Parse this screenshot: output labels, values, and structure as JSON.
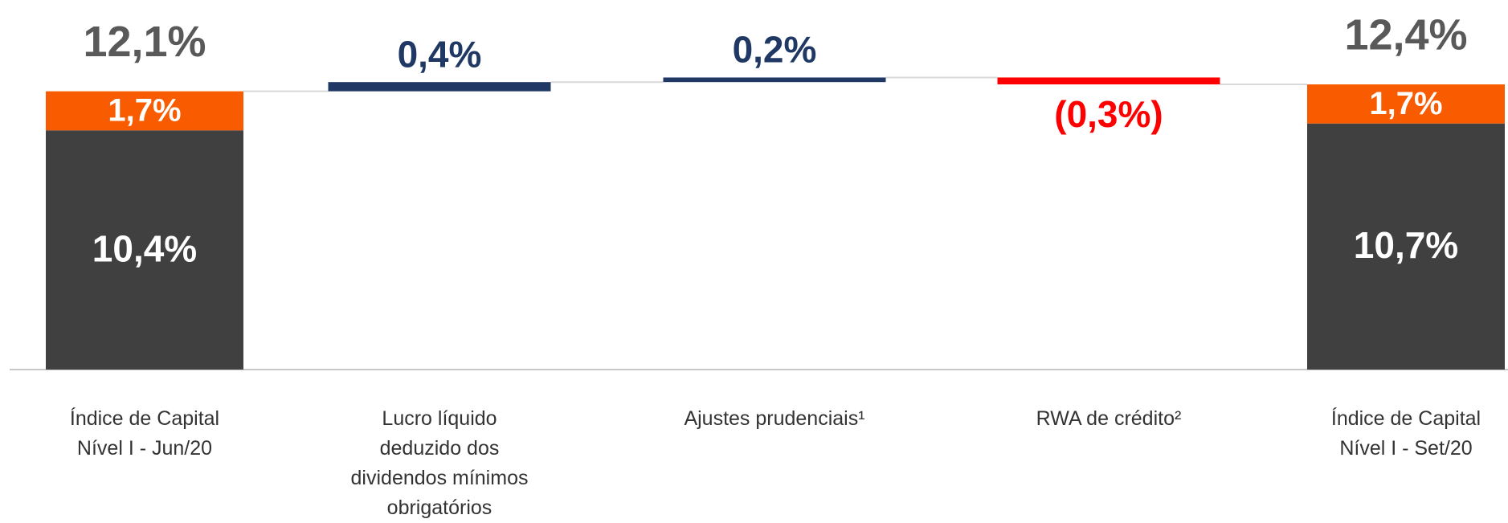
{
  "chart_data": {
    "type": "waterfall",
    "categories": [
      "Índice de Capital Nível I - Jun/20",
      "Lucro líquido deduzido dos dividendos mínimos obrigatórios",
      "Ajustes prudenciais¹",
      "RWA de crédito²",
      "Índice de Capital Nível I - Set/20"
    ],
    "series": [
      {
        "color": "#404040",
        "values": [
          10.4,
          null,
          null,
          null,
          10.7
        ],
        "value_labels": [
          "10,4%",
          null,
          null,
          null,
          "10,7%"
        ]
      },
      {
        "color": "#f95b00",
        "values": [
          1.7,
          null,
          null,
          null,
          1.7
        ],
        "value_labels": [
          "1,7%",
          null,
          null,
          null,
          "1,7%"
        ]
      },
      {
        "colors": [
          null,
          "#203864",
          "#203864",
          "#ff0000",
          null
        ],
        "values": [
          null,
          0.4,
          0.2,
          -0.3,
          null
        ],
        "value_labels": [
          null,
          "0,4%",
          "0,2%",
          "(0,3%)",
          null
        ]
      }
    ],
    "totals": [
      12.1,
      null,
      null,
      null,
      12.4
    ],
    "total_labels": [
      "12,1%",
      null,
      null,
      null,
      "12,4%"
    ],
    "total_label_color": "#595959",
    "ylim": [
      0,
      16
    ]
  }
}
